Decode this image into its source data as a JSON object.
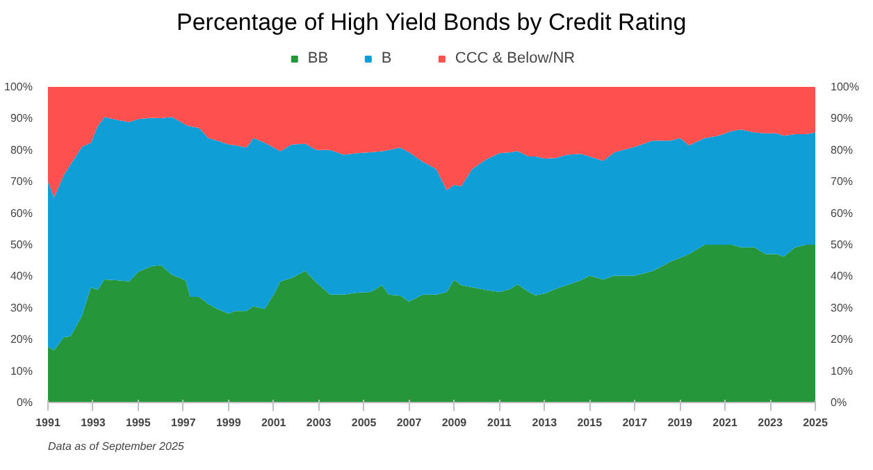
{
  "chart_data": {
    "type": "area",
    "stacked": true,
    "title": "Percentage of High Yield Bonds by Credit Rating",
    "x": [
      1991.0,
      1991.27,
      1991.7,
      1992.0,
      1992.5,
      1992.9,
      1993.2,
      1993.5,
      1994.1,
      1994.6,
      1995.0,
      1995.6,
      1996.0,
      1996.5,
      1997.1,
      1997.3,
      1997.7,
      1998.1,
      1998.5,
      1999.0,
      1999.3,
      1999.8,
      2000.1,
      2000.6,
      2001.0,
      2001.3,
      2001.8,
      2002.4,
      2002.9,
      2003.5,
      2004.1,
      2004.7,
      2005.3,
      2005.8,
      2006.1,
      2006.6,
      2007.0,
      2007.6,
      2008.2,
      2008.67,
      2009.0,
      2009.3,
      2009.8,
      2010.4,
      2011.0,
      2011.5,
      2011.8,
      2012.3,
      2012.6,
      2013.0,
      2013.5,
      2014.0,
      2014.6,
      2015.0,
      2015.6,
      2016.1,
      2017.0,
      2017.8,
      2018.6,
      2019.0,
      2019.4,
      2020.1,
      2020.7,
      2021.3,
      2021.7,
      2022.3,
      2022.8,
      2023.3,
      2023.6,
      2024.1,
      2024.6,
      2025.0
    ],
    "series": [
      {
        "name": "BB",
        "color": "#25963a",
        "values": [
          17.7,
          16.5,
          20.7,
          21,
          27.5,
          36.5,
          35.7,
          39,
          38.7,
          38.4,
          41.4,
          43.2,
          43.5,
          40.5,
          38.7,
          33.5,
          33.5,
          31.2,
          29.7,
          28.2,
          29,
          29,
          30.5,
          29.7,
          34.2,
          38.4,
          39.5,
          41.7,
          38,
          34.2,
          34.2,
          34.8,
          35,
          37.2,
          34.2,
          33.9,
          32,
          34.2,
          34.2,
          35,
          39,
          37.2,
          36.5,
          35.7,
          35,
          36,
          37.5,
          35,
          34,
          34.5,
          36,
          37.2,
          38.7,
          40.2,
          39,
          40.2,
          40.2,
          41.7,
          44.7,
          45.8,
          47,
          50,
          50,
          50,
          49.2,
          49.2,
          47,
          47,
          46.2,
          49.2,
          50,
          50
        ]
      },
      {
        "name": "B",
        "color": "#0f9fd6",
        "values": [
          52.3,
          48.5,
          51.3,
          54.5,
          53.5,
          45.8,
          51.8,
          51.5,
          50.8,
          50.5,
          48.4,
          47,
          46.6,
          50,
          49.3,
          54,
          53.5,
          52.6,
          53.3,
          53.6,
          52.5,
          51.8,
          53.3,
          52.6,
          46.6,
          41.2,
          42.3,
          40.3,
          42,
          45.8,
          44.3,
          44.2,
          44.3,
          42.4,
          45.8,
          46.9,
          47.3,
          42.1,
          39.8,
          32.3,
          30,
          31.3,
          37.5,
          41.3,
          44,
          43.3,
          42.2,
          43,
          44,
          42.8,
          41.5,
          41.3,
          40.1,
          37.8,
          37.6,
          39.1,
          40.8,
          41.3,
          38.3,
          38,
          34.5,
          33.8,
          34.5,
          36,
          37.3,
          36.4,
          38.3,
          38.3,
          38.3,
          35.8,
          35,
          35.6
        ]
      },
      {
        "name": "CCC & Below/NR",
        "color": "#ff5050",
        "values": [
          30,
          35,
          28,
          24.5,
          19,
          17.7,
          12.5,
          9.5,
          10.5,
          11.1,
          10.2,
          9.8,
          9.9,
          9.5,
          12,
          12.5,
          13,
          16.2,
          17,
          18.2,
          18.5,
          19.2,
          16.2,
          17.7,
          19.2,
          20.4,
          18.2,
          18,
          20,
          20,
          21.5,
          21,
          20.7,
          20.4,
          20,
          19.2,
          20.7,
          23.7,
          26,
          32.7,
          31,
          31.5,
          26,
          23,
          21,
          20.7,
          20.3,
          22,
          22,
          22.7,
          22.5,
          21.5,
          21.2,
          22,
          23.4,
          20.7,
          19,
          17,
          17,
          16.2,
          18.5,
          16.2,
          15.5,
          14,
          13.5,
          14.4,
          14.7,
          14.7,
          15.5,
          15,
          15,
          14.4
        ]
      }
    ],
    "xlim": [
      1991,
      2025
    ],
    "xticks": [
      1991,
      1993,
      1995,
      1997,
      1999,
      2001,
      2003,
      2005,
      2007,
      2009,
      2011,
      2013,
      2015,
      2017,
      2019,
      2021,
      2023,
      2025
    ],
    "ylim": [
      0,
      100
    ],
    "yticks": [
      {
        "value": 0,
        "label": "0%"
      },
      {
        "value": 10,
        "label": "10%"
      },
      {
        "value": 20,
        "label": "20%"
      },
      {
        "value": 30,
        "label": "30%"
      },
      {
        "value": 40,
        "label": "40%"
      },
      {
        "value": 50,
        "label": "50%"
      },
      {
        "value": 60,
        "label": "60%"
      },
      {
        "value": 70,
        "label": "70%"
      },
      {
        "value": 80,
        "label": "80%"
      },
      {
        "value": 90,
        "label": "90%"
      },
      {
        "value": 100,
        "label": "100%"
      }
    ],
    "y2lim": [
      0,
      100
    ],
    "y2ticks": [
      {
        "value": 0,
        "label": "0%"
      },
      {
        "value": 10,
        "label": "10%"
      },
      {
        "value": 20,
        "label": "20%"
      },
      {
        "value": 30,
        "label": "30%"
      },
      {
        "value": 40,
        "label": "40%"
      },
      {
        "value": 50,
        "label": "50%"
      },
      {
        "value": 60,
        "label": "60%"
      },
      {
        "value": 70,
        "label": "70%"
      },
      {
        "value": 80,
        "label": "80%"
      },
      {
        "value": 90,
        "label": "90%"
      },
      {
        "value": 100,
        "label": "100%"
      }
    ],
    "grid": false,
    "legend": "top",
    "annotations": [
      "Data as of September 2025"
    ]
  }
}
